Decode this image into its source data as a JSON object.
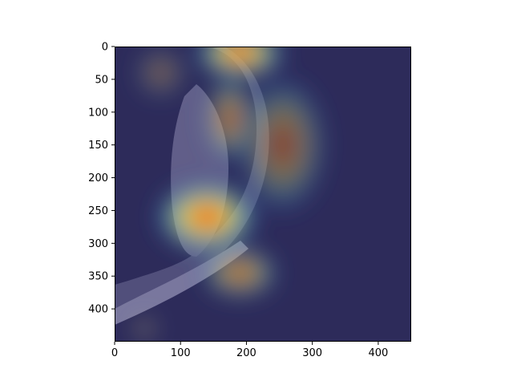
{
  "chart_data": {
    "type": "heatmap",
    "description_visible_text": "",
    "title": "",
    "xlabel": "",
    "ylabel": "",
    "image_size": [
      450,
      450
    ],
    "xlim": [
      0,
      450
    ],
    "ylim": [
      450,
      0
    ],
    "x_ticks": [
      "0",
      "100",
      "200",
      "300",
      "400"
    ],
    "y_ticks": [
      "0",
      "50",
      "100",
      "150",
      "200",
      "250",
      "300",
      "350",
      "400"
    ],
    "x_tick_values": [
      0,
      100,
      200,
      300,
      400
    ],
    "y_tick_values": [
      0,
      50,
      100,
      150,
      200,
      250,
      300,
      350,
      400
    ],
    "grid": false,
    "colormap": "jet",
    "background_color": "#2d2b5a",
    "hotspots": [
      {
        "x": 190,
        "y": 10,
        "rx": 70,
        "ry": 40,
        "intensity": 1.0
      },
      {
        "x": 175,
        "y": 110,
        "rx": 40,
        "ry": 70,
        "intensity": 0.6
      },
      {
        "x": 140,
        "y": 260,
        "rx": 80,
        "ry": 55,
        "intensity": 1.0
      },
      {
        "x": 190,
        "y": 345,
        "rx": 60,
        "ry": 40,
        "intensity": 0.7
      },
      {
        "x": 255,
        "y": 150,
        "rx": 70,
        "ry": 110,
        "intensity": 0.45
      },
      {
        "x": 70,
        "y": 40,
        "rx": 40,
        "ry": 40,
        "intensity": 0.35
      },
      {
        "x": 45,
        "y": 430,
        "rx": 20,
        "ry": 20,
        "intensity": 0.4
      }
    ]
  }
}
